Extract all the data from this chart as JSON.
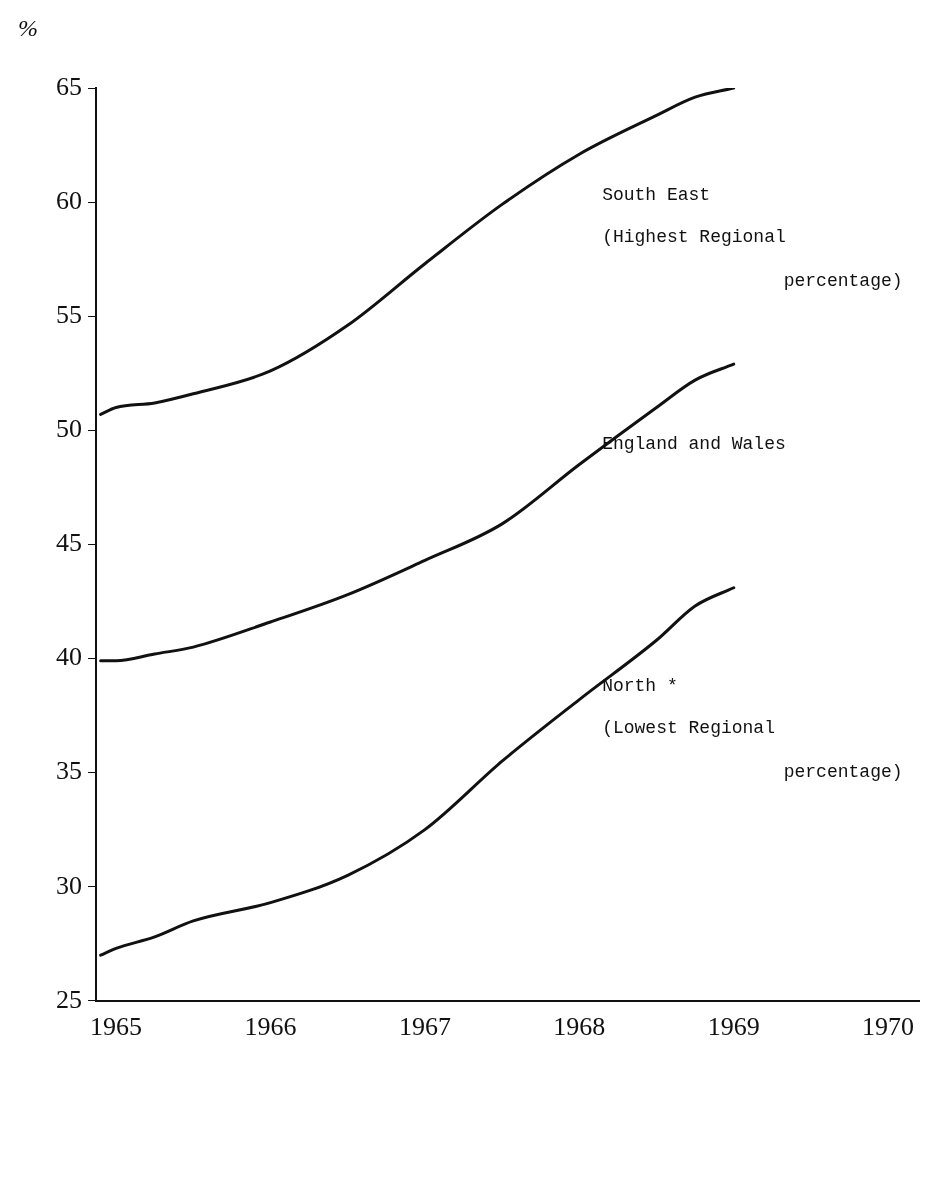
{
  "chart_data": {
    "type": "line",
    "ylabel": "%",
    "x": [
      1964.9,
      1965.0,
      1965.25,
      1965.5,
      1966,
      1966.5,
      1967,
      1967.5,
      1968,
      1968.5,
      1968.75,
      1969
    ],
    "series": [
      {
        "name": "South East",
        "color": "#111111",
        "values": [
          50.7,
          51.0,
          51.2,
          51.6,
          52.6,
          54.6,
          57.3,
          59.9,
          62.1,
          63.8,
          64.6,
          65.0
        ]
      },
      {
        "name": "England and Wales",
        "color": "#111111",
        "values": [
          39.9,
          39.9,
          40.2,
          40.5,
          41.6,
          42.8,
          44.3,
          45.9,
          48.5,
          51.0,
          52.2,
          52.9
        ]
      },
      {
        "name": "North *",
        "color": "#111111",
        "values": [
          27.0,
          27.3,
          27.8,
          28.5,
          29.3,
          30.5,
          32.5,
          35.5,
          38.2,
          40.8,
          42.3,
          43.1
        ]
      }
    ],
    "annotations": [
      "(Highest Regional percentage)",
      "(Lowest Regional percentage)"
    ],
    "xlim": [
      1964.87,
      1970.2
    ],
    "xticks": [
      1965,
      1966,
      1967,
      1968,
      1969,
      1970
    ],
    "ylim": [
      25,
      65
    ],
    "yticks": [
      25,
      30,
      35,
      40,
      45,
      50,
      55,
      60,
      65
    ],
    "grid": false,
    "legend": false,
    "marker": "none",
    "line_style": "solid"
  }
}
